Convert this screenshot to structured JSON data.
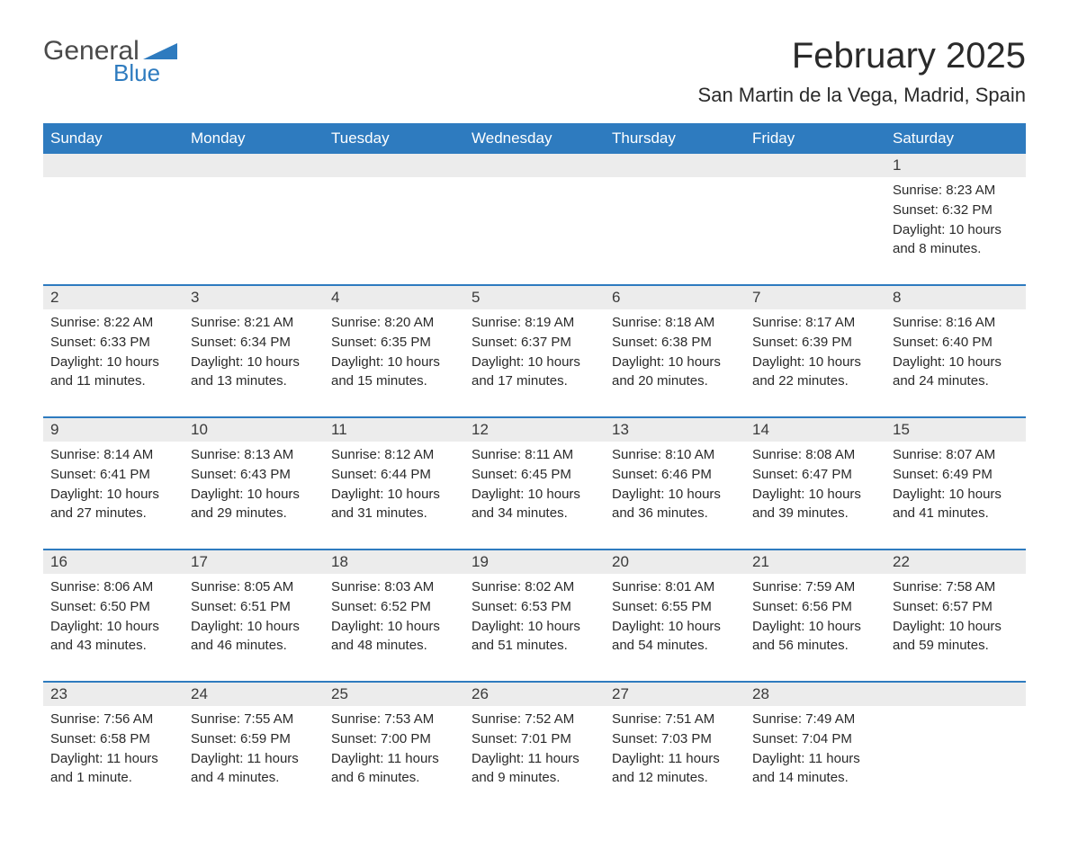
{
  "logo": {
    "text_general": "General",
    "text_blue": "Blue",
    "triangle_color": "#2e7bbf"
  },
  "header": {
    "month_title": "February 2025",
    "location": "San Martin de la Vega, Madrid, Spain"
  },
  "colors": {
    "header_bg": "#2e7bbf",
    "header_text": "#ffffff",
    "daynum_bg": "#ececec",
    "text_color": "#2a2a2a",
    "separator": "#2e7bbf"
  },
  "fonts": {
    "title_size": 40,
    "location_size": 22,
    "dayheader_size": 17,
    "body_size": 15
  },
  "day_labels": [
    "Sunday",
    "Monday",
    "Tuesday",
    "Wednesday",
    "Thursday",
    "Friday",
    "Saturday"
  ],
  "weeks": [
    {
      "days": [
        null,
        null,
        null,
        null,
        null,
        null,
        {
          "num": "1",
          "sunrise": "Sunrise: 8:23 AM",
          "sunset": "Sunset: 6:32 PM",
          "daylight": "Daylight: 10 hours and 8 minutes."
        }
      ]
    },
    {
      "days": [
        {
          "num": "2",
          "sunrise": "Sunrise: 8:22 AM",
          "sunset": "Sunset: 6:33 PM",
          "daylight": "Daylight: 10 hours and 11 minutes."
        },
        {
          "num": "3",
          "sunrise": "Sunrise: 8:21 AM",
          "sunset": "Sunset: 6:34 PM",
          "daylight": "Daylight: 10 hours and 13 minutes."
        },
        {
          "num": "4",
          "sunrise": "Sunrise: 8:20 AM",
          "sunset": "Sunset: 6:35 PM",
          "daylight": "Daylight: 10 hours and 15 minutes."
        },
        {
          "num": "5",
          "sunrise": "Sunrise: 8:19 AM",
          "sunset": "Sunset: 6:37 PM",
          "daylight": "Daylight: 10 hours and 17 minutes."
        },
        {
          "num": "6",
          "sunrise": "Sunrise: 8:18 AM",
          "sunset": "Sunset: 6:38 PM",
          "daylight": "Daylight: 10 hours and 20 minutes."
        },
        {
          "num": "7",
          "sunrise": "Sunrise: 8:17 AM",
          "sunset": "Sunset: 6:39 PM",
          "daylight": "Daylight: 10 hours and 22 minutes."
        },
        {
          "num": "8",
          "sunrise": "Sunrise: 8:16 AM",
          "sunset": "Sunset: 6:40 PM",
          "daylight": "Daylight: 10 hours and 24 minutes."
        }
      ]
    },
    {
      "days": [
        {
          "num": "9",
          "sunrise": "Sunrise: 8:14 AM",
          "sunset": "Sunset: 6:41 PM",
          "daylight": "Daylight: 10 hours and 27 minutes."
        },
        {
          "num": "10",
          "sunrise": "Sunrise: 8:13 AM",
          "sunset": "Sunset: 6:43 PM",
          "daylight": "Daylight: 10 hours and 29 minutes."
        },
        {
          "num": "11",
          "sunrise": "Sunrise: 8:12 AM",
          "sunset": "Sunset: 6:44 PM",
          "daylight": "Daylight: 10 hours and 31 minutes."
        },
        {
          "num": "12",
          "sunrise": "Sunrise: 8:11 AM",
          "sunset": "Sunset: 6:45 PM",
          "daylight": "Daylight: 10 hours and 34 minutes."
        },
        {
          "num": "13",
          "sunrise": "Sunrise: 8:10 AM",
          "sunset": "Sunset: 6:46 PM",
          "daylight": "Daylight: 10 hours and 36 minutes."
        },
        {
          "num": "14",
          "sunrise": "Sunrise: 8:08 AM",
          "sunset": "Sunset: 6:47 PM",
          "daylight": "Daylight: 10 hours and 39 minutes."
        },
        {
          "num": "15",
          "sunrise": "Sunrise: 8:07 AM",
          "sunset": "Sunset: 6:49 PM",
          "daylight": "Daylight: 10 hours and 41 minutes."
        }
      ]
    },
    {
      "days": [
        {
          "num": "16",
          "sunrise": "Sunrise: 8:06 AM",
          "sunset": "Sunset: 6:50 PM",
          "daylight": "Daylight: 10 hours and 43 minutes."
        },
        {
          "num": "17",
          "sunrise": "Sunrise: 8:05 AM",
          "sunset": "Sunset: 6:51 PM",
          "daylight": "Daylight: 10 hours and 46 minutes."
        },
        {
          "num": "18",
          "sunrise": "Sunrise: 8:03 AM",
          "sunset": "Sunset: 6:52 PM",
          "daylight": "Daylight: 10 hours and 48 minutes."
        },
        {
          "num": "19",
          "sunrise": "Sunrise: 8:02 AM",
          "sunset": "Sunset: 6:53 PM",
          "daylight": "Daylight: 10 hours and 51 minutes."
        },
        {
          "num": "20",
          "sunrise": "Sunrise: 8:01 AM",
          "sunset": "Sunset: 6:55 PM",
          "daylight": "Daylight: 10 hours and 54 minutes."
        },
        {
          "num": "21",
          "sunrise": "Sunrise: 7:59 AM",
          "sunset": "Sunset: 6:56 PM",
          "daylight": "Daylight: 10 hours and 56 minutes."
        },
        {
          "num": "22",
          "sunrise": "Sunrise: 7:58 AM",
          "sunset": "Sunset: 6:57 PM",
          "daylight": "Daylight: 10 hours and 59 minutes."
        }
      ]
    },
    {
      "days": [
        {
          "num": "23",
          "sunrise": "Sunrise: 7:56 AM",
          "sunset": "Sunset: 6:58 PM",
          "daylight": "Daylight: 11 hours and 1 minute."
        },
        {
          "num": "24",
          "sunrise": "Sunrise: 7:55 AM",
          "sunset": "Sunset: 6:59 PM",
          "daylight": "Daylight: 11 hours and 4 minutes."
        },
        {
          "num": "25",
          "sunrise": "Sunrise: 7:53 AM",
          "sunset": "Sunset: 7:00 PM",
          "daylight": "Daylight: 11 hours and 6 minutes."
        },
        {
          "num": "26",
          "sunrise": "Sunrise: 7:52 AM",
          "sunset": "Sunset: 7:01 PM",
          "daylight": "Daylight: 11 hours and 9 minutes."
        },
        {
          "num": "27",
          "sunrise": "Sunrise: 7:51 AM",
          "sunset": "Sunset: 7:03 PM",
          "daylight": "Daylight: 11 hours and 12 minutes."
        },
        {
          "num": "28",
          "sunrise": "Sunrise: 7:49 AM",
          "sunset": "Sunset: 7:04 PM",
          "daylight": "Daylight: 11 hours and 14 minutes."
        },
        null
      ]
    }
  ]
}
